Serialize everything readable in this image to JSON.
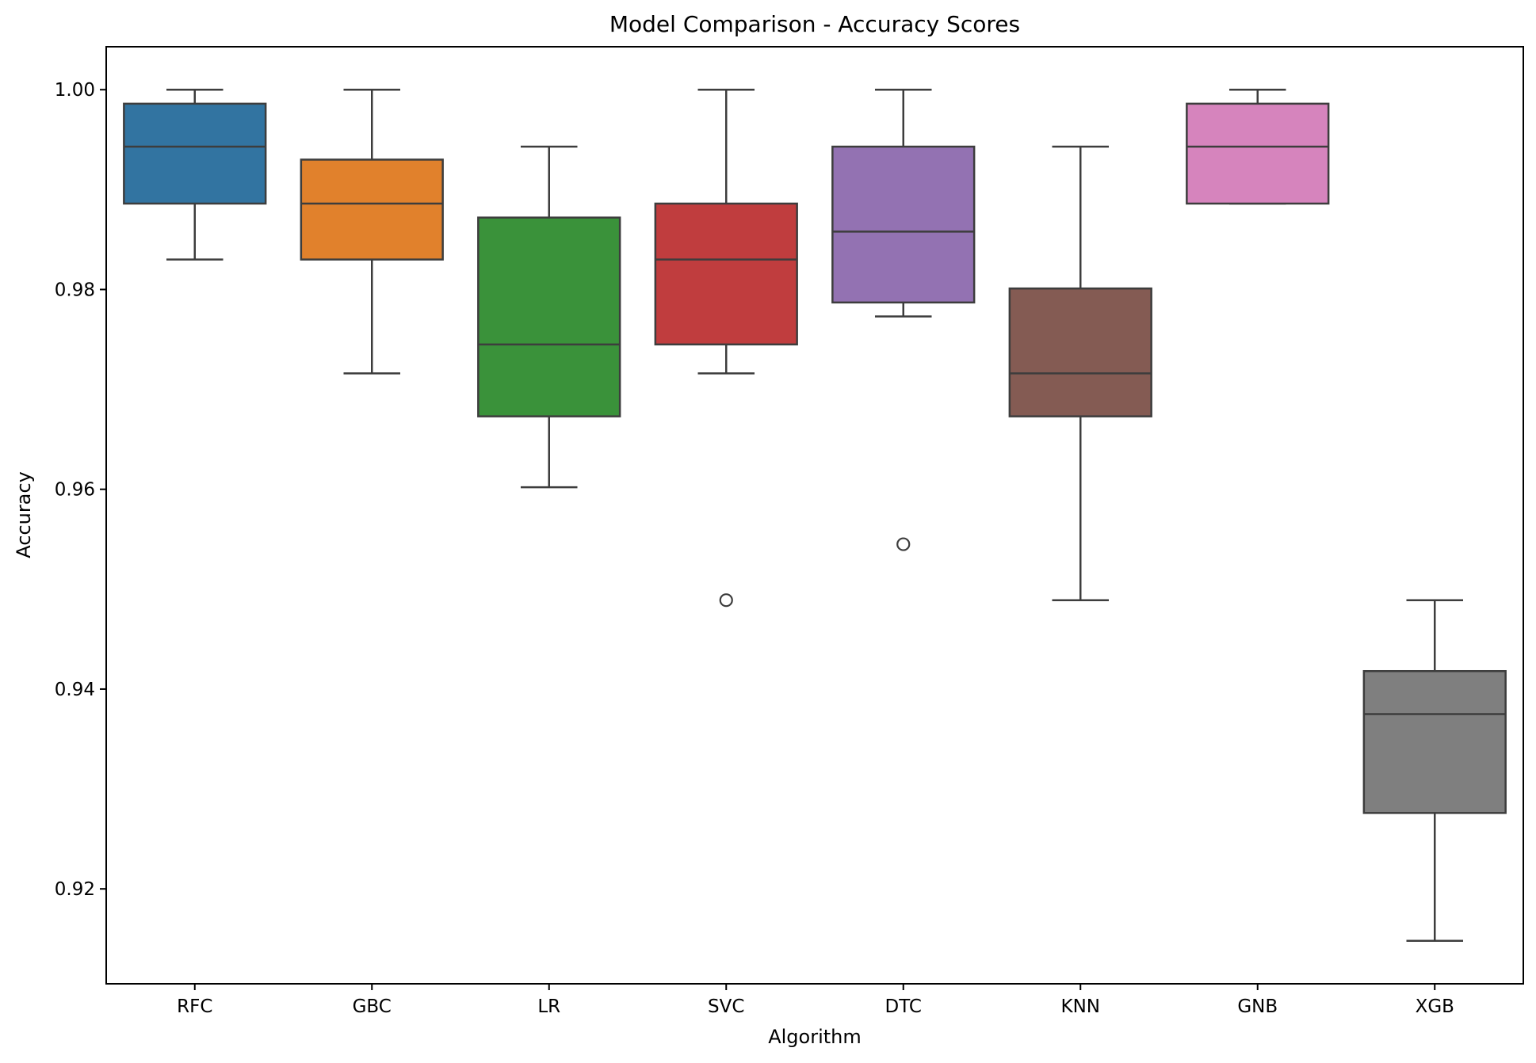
{
  "chart_data": {
    "type": "box",
    "title": "Model Comparison - Accuracy Scores",
    "xlabel": "Algorithm",
    "ylabel": "Accuracy",
    "ylim": [
      0.9105,
      1.0043
    ],
    "yticks": [
      0.92,
      0.94,
      0.96,
      0.98,
      1.0
    ],
    "ytick_labels": [
      "0.92",
      "0.94",
      "0.96",
      "0.98",
      "1.00"
    ],
    "grid": false,
    "legend": "none",
    "categories": [
      "RFC",
      "GBC",
      "LR",
      "SVC",
      "DTC",
      "KNN",
      "GNB",
      "XGB"
    ],
    "series": [
      {
        "category": "RFC",
        "color": "#3274a1",
        "whisker_low": 0.983,
        "q1": 0.9886,
        "median": 0.9943,
        "q3": 0.9986,
        "whisker_high": 1.0,
        "outliers": []
      },
      {
        "category": "GBC",
        "color": "#e1812c",
        "whisker_low": 0.9716,
        "q1": 0.983,
        "median": 0.9886,
        "q3": 0.993,
        "whisker_high": 1.0,
        "outliers": []
      },
      {
        "category": "LR",
        "color": "#3a923a",
        "whisker_low": 0.9602,
        "q1": 0.9673,
        "median": 0.9745,
        "q3": 0.9872,
        "whisker_high": 0.9943,
        "outliers": []
      },
      {
        "category": "SVC",
        "color": "#c03d3e",
        "whisker_low": 0.9716,
        "q1": 0.9745,
        "median": 0.983,
        "q3": 0.9886,
        "whisker_high": 1.0,
        "outliers": [
          0.9489
        ]
      },
      {
        "category": "DTC",
        "color": "#9372b2",
        "whisker_low": 0.9773,
        "q1": 0.9787,
        "median": 0.9858,
        "q3": 0.9943,
        "whisker_high": 1.0,
        "outliers": [
          0.9545
        ]
      },
      {
        "category": "KNN",
        "color": "#845b53",
        "whisker_low": 0.9489,
        "q1": 0.9673,
        "median": 0.9716,
        "q3": 0.9801,
        "whisker_high": 0.9943,
        "outliers": []
      },
      {
        "category": "GNB",
        "color": "#d684bd",
        "whisker_low": 0.9886,
        "q1": 0.9886,
        "median": 0.9943,
        "q3": 0.9986,
        "whisker_high": 1.0,
        "outliers": []
      },
      {
        "category": "XGB",
        "color": "#7f7f7f",
        "whisker_low": 0.9148,
        "q1": 0.9276,
        "median": 0.9375,
        "q3": 0.9418,
        "whisker_high": 0.9489,
        "outliers": []
      }
    ]
  }
}
